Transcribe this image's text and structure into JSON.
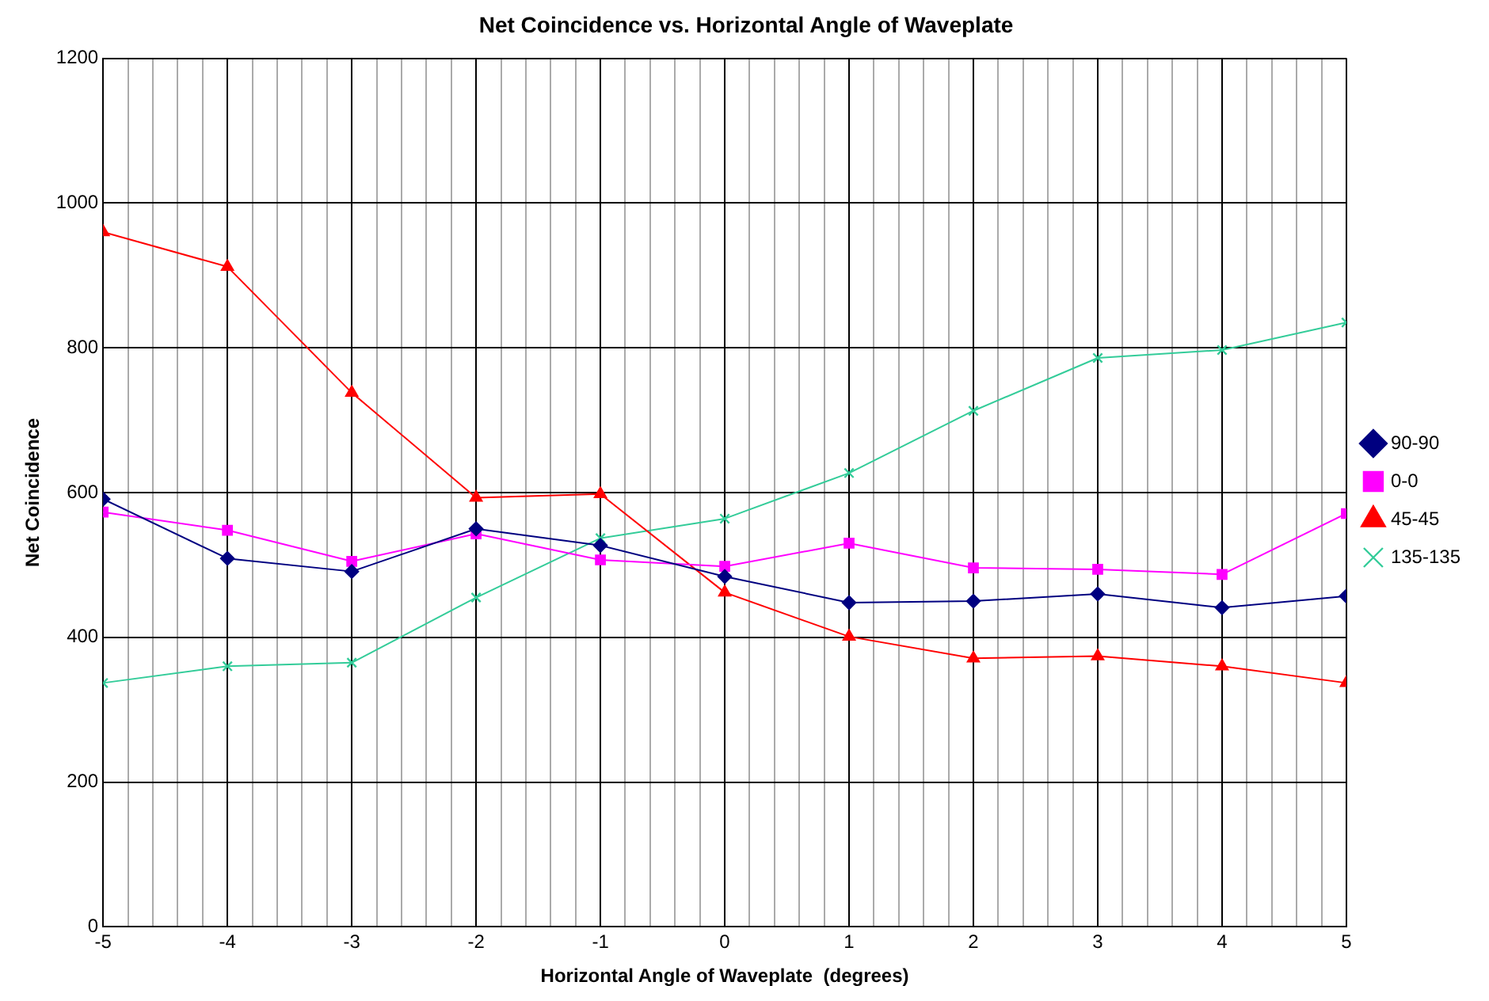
{
  "chart_data": {
    "type": "line",
    "title": "Net Coincidence vs. Horizontal Angle of Waveplate",
    "xlabel": "Horizontal Angle of Waveplate  (degrees)",
    "ylabel": "Net Coincidence",
    "x": [
      -5,
      -4,
      -3,
      -2,
      -1,
      0,
      1,
      2,
      3,
      4,
      5
    ],
    "xlim": [
      -5,
      5
    ],
    "xticks": [
      -5,
      {
        "value": -4.8,
        "label": null
      },
      {
        "value": -4.6,
        "label": null
      },
      {
        "value": -4.4,
        "label": null
      },
      {
        "value": -4.2,
        "label": null
      },
      -4,
      {
        "value": -3.8,
        "label": null
      },
      {
        "value": -3.6,
        "label": null
      },
      {
        "value": -3.4,
        "label": null
      },
      {
        "value": -3.2,
        "label": null
      },
      -3,
      {
        "value": -2.8,
        "label": null
      },
      {
        "value": -2.6,
        "label": null
      },
      {
        "value": -2.4,
        "label": null
      },
      {
        "value": -2.2,
        "label": null
      },
      -2,
      {
        "value": -1.8,
        "label": null
      },
      {
        "value": -1.6,
        "label": null
      },
      {
        "value": -1.4,
        "label": null
      },
      {
        "value": -1.2,
        "label": null
      },
      -1,
      {
        "value": -0.8,
        "label": null
      },
      {
        "value": -0.6,
        "label": null
      },
      {
        "value": -0.4,
        "label": null
      },
      {
        "value": -0.2,
        "label": null
      },
      0,
      {
        "value": 0.2,
        "label": null
      },
      {
        "value": 0.4,
        "label": null
      },
      {
        "value": 0.6,
        "label": null
      },
      {
        "value": 0.8,
        "label": null
      },
      1,
      {
        "value": 1.2,
        "label": null
      },
      {
        "value": 1.4,
        "label": null
      },
      {
        "value": 1.6,
        "label": null
      },
      {
        "value": 1.8,
        "label": null
      },
      2,
      {
        "value": 2.2,
        "label": null
      },
      {
        "value": 2.4,
        "label": null
      },
      {
        "value": 2.6,
        "label": null
      },
      {
        "value": 2.8,
        "label": null
      },
      3,
      {
        "value": 3.2,
        "label": null
      },
      {
        "value": 3.4,
        "label": null
      },
      {
        "value": 3.6,
        "label": null
      },
      {
        "value": 3.8,
        "label": null
      },
      4,
      {
        "value": 4.2,
        "label": null
      },
      {
        "value": 4.4,
        "label": null
      },
      {
        "value": 4.6,
        "label": null
      },
      {
        "value": 4.8,
        "label": null
      },
      5
    ],
    "ylim": [
      0,
      1200
    ],
    "yticks": [
      0,
      200,
      400,
      600,
      800,
      1000,
      1200
    ],
    "grid": true,
    "legend": "right",
    "line_style": "solid",
    "series": [
      {
        "name": "90-90",
        "color": "#000080",
        "marker": "diamond",
        "values": [
          591,
          509,
          491,
          550,
          527,
          484,
          448,
          450,
          460,
          441,
          457
        ]
      },
      {
        "name": "0-0",
        "color": "#ff00ff",
        "marker": "square",
        "values": [
          573,
          548,
          505,
          543,
          507,
          498,
          530,
          496,
          494,
          487,
          571
        ]
      },
      {
        "name": "45-45",
        "color": "#ff0000",
        "marker": "triangle",
        "values": [
          960,
          912,
          738,
          593,
          598,
          462,
          401,
          371,
          374,
          360,
          337
        ]
      },
      {
        "name": "135-135",
        "color": "#33cc99",
        "marker": "cross",
        "values": [
          337,
          360,
          365,
          455,
          537,
          564,
          627,
          713,
          786,
          797,
          835
        ]
      }
    ]
  }
}
